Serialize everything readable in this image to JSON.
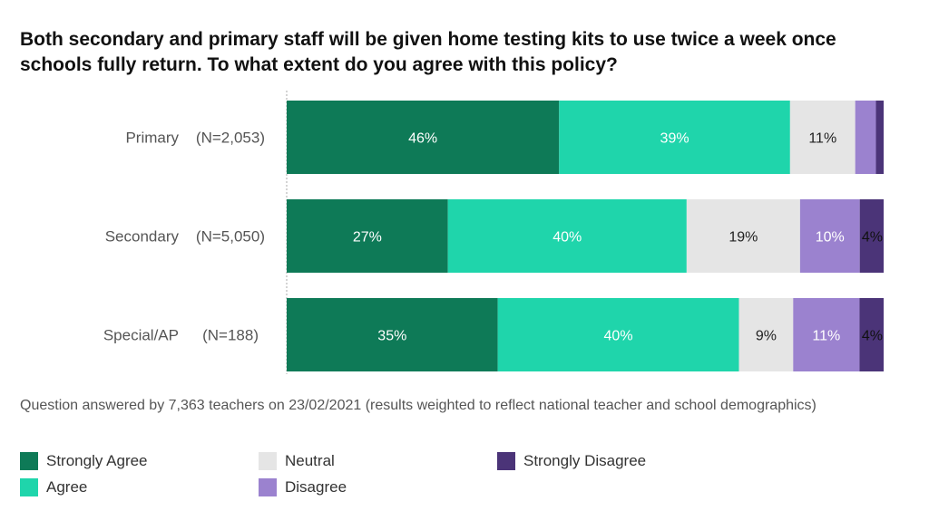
{
  "title": "Both secondary and primary staff will be given home testing kits to use twice a week once schools fully return. To what extent do you agree with this policy?",
  "note": "Question answered by 7,363 teachers on 23/02/2021 (results weighted to reflect national teacher and school demographics)",
  "colors": {
    "Strongly Agree": "#0e7a57",
    "Agree": "#1fd5ab",
    "Neutral": "#e5e5e5",
    "Disagree": "#9b82cf",
    "Strongly Disagree": "#4b3478"
  },
  "legend": [
    {
      "label": "Strongly Agree",
      "color": "#0e7a57"
    },
    {
      "label": "Agree",
      "color": "#1fd5ab"
    },
    {
      "label": "Neutral",
      "color": "#e5e5e5"
    },
    {
      "label": "Disagree",
      "color": "#9b82cf"
    },
    {
      "label": "Strongly Disagree",
      "color": "#4b3478"
    }
  ],
  "chart_data": {
    "type": "bar",
    "orientation": "horizontal",
    "stacked": true,
    "categories": [
      "Primary",
      "Secondary",
      "Special/AP"
    ],
    "category_ns": [
      "(N=2,053)",
      "(N=5,050)",
      "(N=188)"
    ],
    "series": [
      {
        "name": "Strongly Agree",
        "values": [
          46,
          27,
          35
        ],
        "labels": [
          "46%",
          "27%",
          "35%"
        ]
      },
      {
        "name": "Agree",
        "values": [
          39,
          40,
          40
        ],
        "labels": [
          "39%",
          "40%",
          "40%"
        ]
      },
      {
        "name": "Neutral",
        "values": [
          11,
          19,
          9
        ],
        "labels": [
          "11%",
          "19%",
          "9%"
        ]
      },
      {
        "name": "Disagree",
        "values": [
          3.5,
          10,
          11
        ],
        "labels": [
          "",
          "10%",
          "11%"
        ]
      },
      {
        "name": "Strongly Disagree",
        "values": [
          1.3,
          4,
          4
        ],
        "labels": [
          "",
          "4%",
          "4%"
        ]
      }
    ],
    "xlim": [
      0,
      100
    ],
    "grid": false,
    "legend_position": "bottom"
  }
}
